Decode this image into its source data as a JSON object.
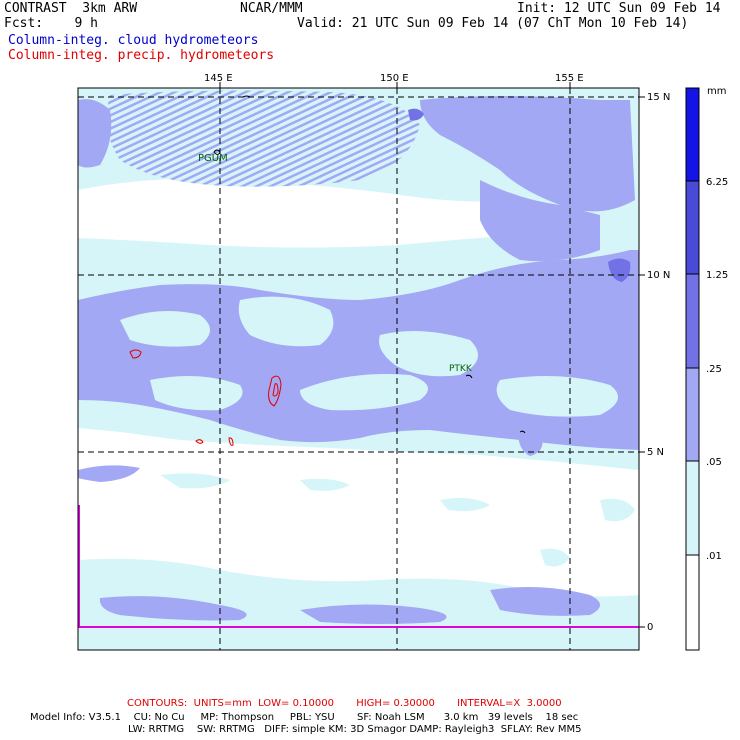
{
  "header": {
    "left_line1": "CONTRAST  3km ARW",
    "center_line1": "NCAR/MMM",
    "right_line1": "Init: 12 UTC Sun 09 Feb 14",
    "left_line2": "Fcst:    9 h",
    "right_line2": "Valid: 21 UTC Sun 09 Feb 14 (07 ChT Mon 10 Feb 14)",
    "legend_cloud": "Column-integ. cloud hydrometeors",
    "legend_precip": "Column-integ. precip. hydrometeors"
  },
  "map": {
    "lon_labels": [
      "145 E",
      "150 E",
      "155 E"
    ],
    "lat_labels": [
      "15 N",
      "10 N",
      "5 N",
      "0"
    ],
    "stations": [
      "PGUM",
      "PTKK"
    ]
  },
  "colorbar": {
    "unit": "mm",
    "labels": [
      "6.25",
      "1.25",
      ".25",
      ".05",
      ".01"
    ],
    "colors": [
      "#1414e6",
      "#4a4ad9",
      "#7272e6",
      "#a3a8f5",
      "#d6f5f8",
      "#ffffff"
    ]
  },
  "colors": {
    "cloud_light": "#d6f5f8",
    "cloud_medium": "#a3a8f5",
    "cloud_dark": "#7272e6",
    "precip_contour": "#e00000",
    "boundary": "#e000e0"
  },
  "footer": {
    "contours": "CONTOURS:  UNITS=mm  LOW= 0.10000       HIGH= 0.30000       INTERVAL=X  3.0000",
    "model_line1": "Model Info: V3.5.1    CU: No Cu     MP: Thompson     PBL: YSU       SF: Noah LSM      3.0 km   39 levels    18 sec",
    "model_line2": "LW: RRTMG    SW: RRTMG   DIFF: simple KM: 3D Smagor DAMP: Rayleigh3  SFLAY: Rev MM5"
  }
}
